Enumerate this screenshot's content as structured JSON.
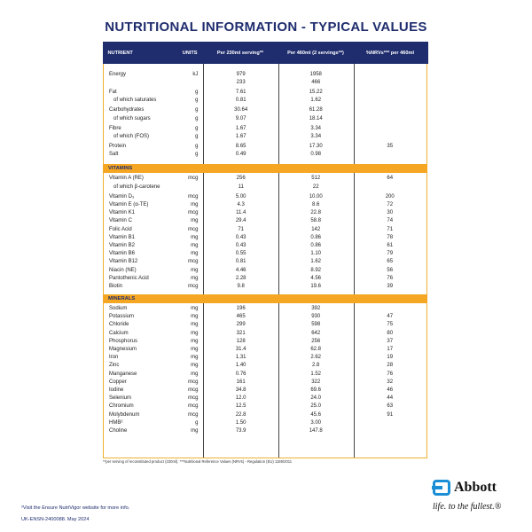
{
  "title": "NUTRITIONAL INFORMATION - TYPICAL VALUES",
  "header": [
    "NUTRIENT",
    "UNITS",
    "Per 230ml serving**",
    "Per 460ml (2 servings**)",
    "%NRVs*** per 460ml"
  ],
  "sections": [
    {
      "label": "",
      "groups": [
        [
          [
            "Energy",
            "kJ",
            "979",
            "1958",
            ""
          ],
          [
            "",
            "",
            "233",
            "466",
            ""
          ]
        ],
        [
          [
            "Fat",
            "g",
            "7.61",
            "15.22",
            ""
          ],
          [
            "of which saturates",
            "g",
            "0.81",
            "1.62",
            "",
            1
          ]
        ],
        [
          [
            "Carbohydrates",
            "g",
            "30.64",
            "61.28",
            ""
          ],
          [
            "of which sugars",
            "g",
            "9.07",
            "18.14",
            "",
            1
          ]
        ],
        [
          [
            "Fibre",
            "g",
            "1.67",
            "3.34",
            ""
          ],
          [
            "of which (FOS)",
            "g",
            "1.67",
            "3.34",
            "",
            1
          ]
        ],
        [
          [
            "Protein",
            "g",
            "8.65",
            "17.30",
            "35"
          ],
          [
            "Salt",
            "g",
            "0.49",
            "0.98",
            ""
          ]
        ]
      ]
    },
    {
      "label": "VITAMINS",
      "groups": [
        [
          [
            "Vitamin A (RE)",
            "mcg",
            "256",
            "512",
            "64"
          ],
          [
            "of which β-carotene",
            "",
            "11",
            "22",
            "",
            1
          ]
        ],
        [
          [
            "Vitamin D₃",
            "mcg",
            "5.00",
            "10.00",
            "200"
          ],
          [
            "Vitamin E (α-TE)",
            "mg",
            "4.3",
            "8.6",
            "72"
          ],
          [
            "Vitamin K1",
            "mcg",
            "11.4",
            "22.8",
            "30"
          ],
          [
            "Vitamin C",
            "mg",
            "29.4",
            "58.8",
            "74"
          ],
          [
            "Folic Acid",
            "mcg",
            "71",
            "142",
            "71"
          ],
          [
            "Vitamin B1",
            "mg",
            "0.43",
            "0.86",
            "78"
          ],
          [
            "Vitamin B2",
            "mg",
            "0.43",
            "0.86",
            "61"
          ],
          [
            "Vitamin B6",
            "mg",
            "0.55",
            "1.10",
            "79"
          ],
          [
            "Vitamin B12",
            "mcg",
            "0.81",
            "1.62",
            "65"
          ],
          [
            "Niacin (NE)",
            "mg",
            "4.46",
            "8.92",
            "56"
          ],
          [
            "Pantothenic Acid",
            "mg",
            "2.28",
            "4.56",
            "76"
          ],
          [
            "Biotin",
            "mcg",
            "9.8",
            "19.6",
            "39"
          ]
        ]
      ]
    },
    {
      "label": "MINERALS",
      "groups": [
        [
          [
            "Sodium",
            "mg",
            "196",
            "392",
            ""
          ],
          [
            "Potassium",
            "mg",
            "465",
            "930",
            "47"
          ],
          [
            "Chloride",
            "mg",
            "299",
            "598",
            "75"
          ],
          [
            "Calcium",
            "mg",
            "321",
            "642",
            "80"
          ],
          [
            "Phosphorus",
            "mg",
            "128",
            "256",
            "37"
          ],
          [
            "Magnesium",
            "mg",
            "31.4",
            "62.8",
            "17"
          ],
          [
            "Iron",
            "mg",
            "1.31",
            "2.62",
            "19"
          ],
          [
            "Zinc",
            "mg",
            "1.40",
            "2.8",
            "28"
          ],
          [
            "Manganese",
            "mg",
            "0.76",
            "1.52",
            "76"
          ],
          [
            "Copper",
            "mcg",
            "161",
            "322",
            "32"
          ],
          [
            "Iodine",
            "mcg",
            "34.8",
            "69.6",
            "46"
          ],
          [
            "Selenium",
            "mcg",
            "12.0",
            "24.0",
            "44"
          ],
          [
            "Chromium",
            "mcg",
            "12.5",
            "25.0",
            "63"
          ],
          [
            "Molybdenum",
            "mcg",
            "22.8",
            "45.6",
            "91"
          ],
          [
            "HMB²",
            "g",
            "1.50",
            "3.00",
            ""
          ],
          [
            "Choline",
            "mg",
            "73.9",
            "147.8",
            ""
          ]
        ]
      ]
    }
  ],
  "footnote": "**per serving of reconstituted product (230ml). ***Nutritional Reference Values (NRVs) - Regulation (EU) 1169/2011",
  "visit_note": "²Visit the Ensure NutriVigor website for more info.",
  "code": "UK-ENSN-2400088. May 2024",
  "logo": {
    "brand": "Abbott",
    "tagline": "life. to the fullest.®"
  },
  "colors": {
    "navy": "#1f2d6e",
    "orange": "#f5a623",
    "abbott_blue": "#1a8fd6"
  }
}
